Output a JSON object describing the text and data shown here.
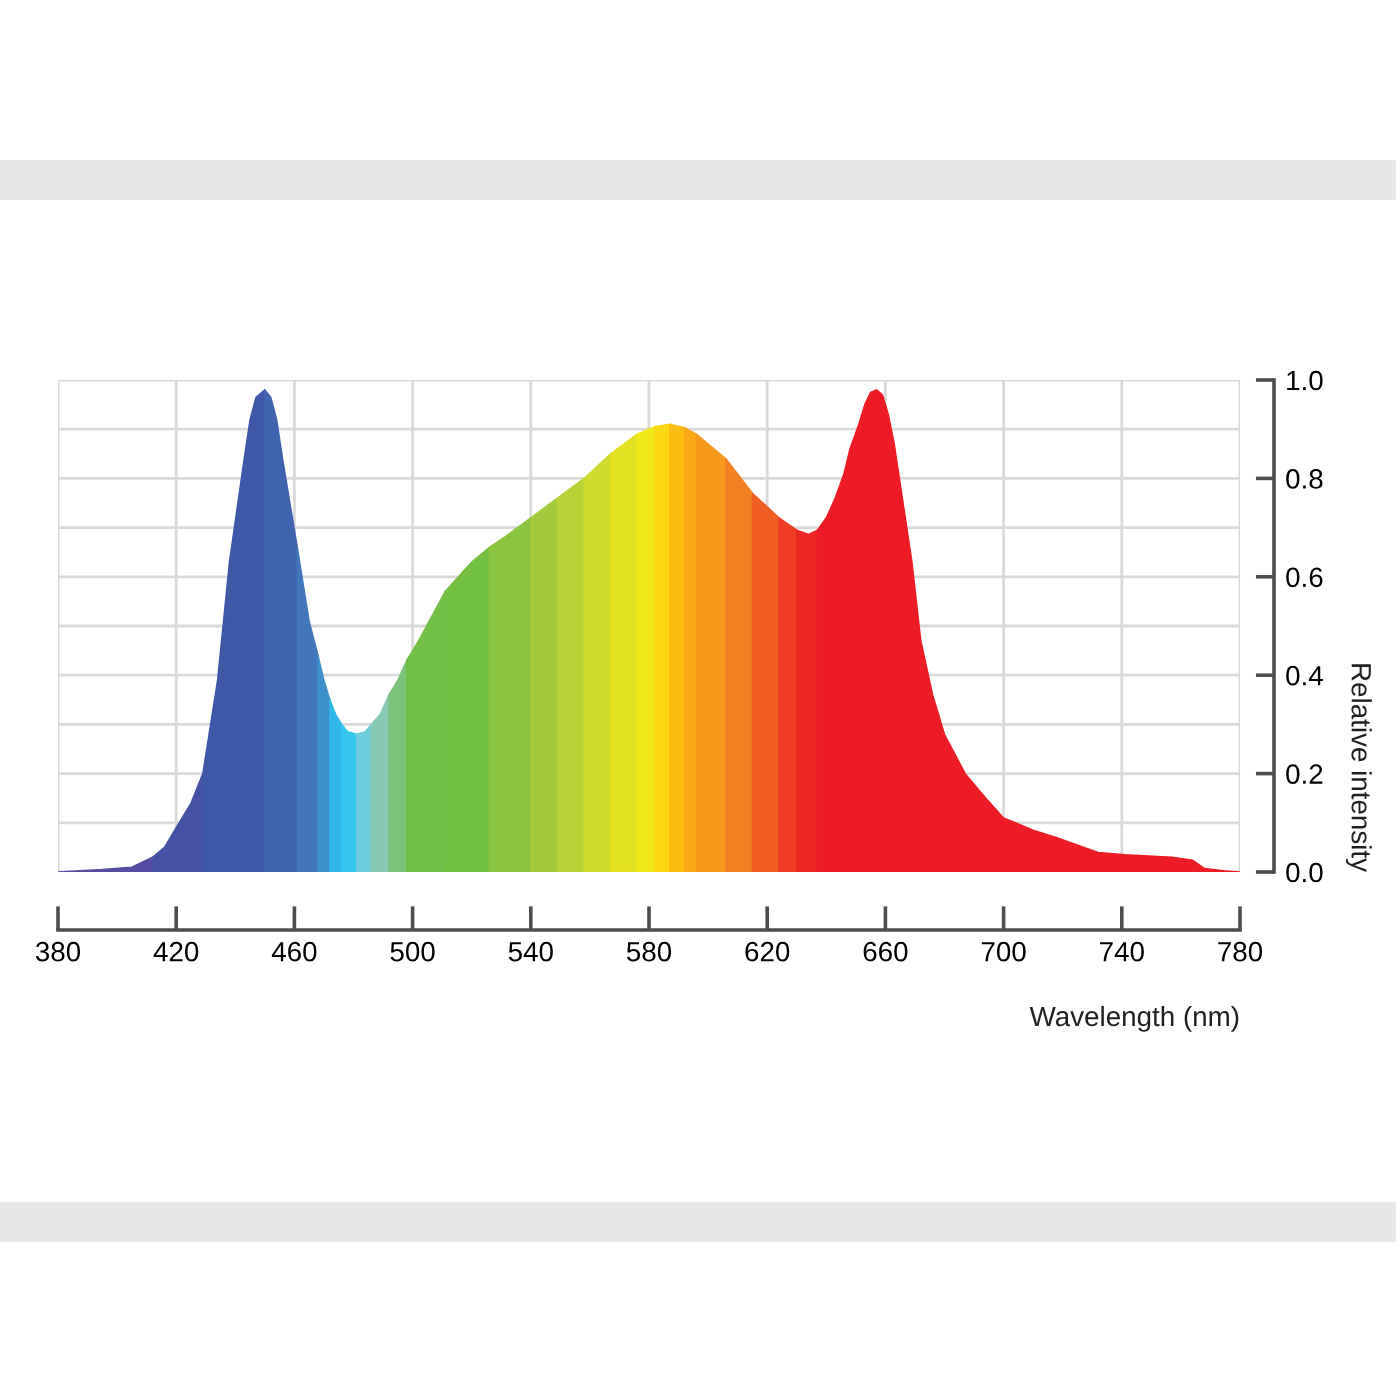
{
  "chart_data": {
    "type": "area",
    "xlabel": "Wavelength (nm)",
    "ylabel": "Relative intensity",
    "series": [
      {
        "color": "#544ca1",
        "x": [
          380,
          395,
          405,
          412
        ],
        "values": [
          0,
          0.005,
          0.01,
          0.03
        ]
      },
      {
        "color": "#4552a4",
        "x": [
          412,
          416,
          420,
          425,
          429
        ],
        "values": [
          0.03,
          0.05,
          0.09,
          0.14,
          0.2
        ]
      },
      {
        "color": "#3c58a7",
        "x": [
          429,
          434,
          438,
          443,
          445,
          447,
          450
        ],
        "values": [
          0.2,
          0.39,
          0.63,
          0.84,
          0.92,
          0.965,
          0.98
        ]
      },
      {
        "color": "#3f63ac",
        "x": [
          450,
          452,
          454,
          456,
          461
        ],
        "values": [
          0.98,
          0.965,
          0.92,
          0.84,
          0.66
        ]
      },
      {
        "color": "#4276bb",
        "x": [
          461,
          465,
          468
        ],
        "values": [
          0.66,
          0.51,
          0.44
        ]
      },
      {
        "color": "#3e90ca",
        "x": [
          468,
          470,
          472
        ],
        "values": [
          0.44,
          0.39,
          0.35
        ]
      },
      {
        "color": "#2fb7ea",
        "x": [
          472,
          474,
          476
        ],
        "values": [
          0.35,
          0.32,
          0.3
        ]
      },
      {
        "color": "#33c7f0",
        "x": [
          476,
          478,
          481
        ],
        "values": [
          0.3,
          0.285,
          0.28
        ]
      },
      {
        "color": "#6ccbdc",
        "x": [
          481,
          484,
          486
        ],
        "values": [
          0.28,
          0.285,
          0.3
        ]
      },
      {
        "color": "#85c9b4",
        "x": [
          486,
          489,
          492
        ],
        "values": [
          0.3,
          0.32,
          0.36
        ]
      },
      {
        "color": "#7cc27a",
        "x": [
          492,
          495,
          498
        ],
        "values": [
          0.36,
          0.39,
          0.43
        ]
      },
      {
        "color": "#72bf48",
        "x": [
          498,
          502,
          511
        ],
        "values": [
          0.43,
          0.47,
          0.57
        ]
      },
      {
        "color": "#74c043",
        "x": [
          511,
          520,
          526
        ],
        "values": [
          0.57,
          0.63,
          0.66
        ]
      },
      {
        "color": "#89c53f",
        "x": [
          526,
          531,
          540
        ],
        "values": [
          0.66,
          0.68,
          0.72
        ]
      },
      {
        "color": "#a2cb3b",
        "x": [
          540,
          549
        ],
        "values": [
          0.72,
          0.76
        ]
      },
      {
        "color": "#b8d236",
        "x": [
          549,
          558
        ],
        "values": [
          0.76,
          0.8
        ]
      },
      {
        "color": "#cfda2e",
        "x": [
          558,
          567
        ],
        "values": [
          0.8,
          0.85
        ]
      },
      {
        "color": "#e4e022",
        "x": [
          567,
          576
        ],
        "values": [
          0.85,
          0.89
        ]
      },
      {
        "color": "#f3e817",
        "x": [
          576,
          582
        ],
        "values": [
          0.89,
          0.905
        ]
      },
      {
        "color": "#fbd811",
        "x": [
          582,
          587
        ],
        "values": [
          0.905,
          0.91
        ]
      },
      {
        "color": "#fcbd12",
        "x": [
          587,
          592
        ],
        "values": [
          0.91,
          0.903
        ]
      },
      {
        "color": "#faa818",
        "x": [
          592,
          596
        ],
        "values": [
          0.903,
          0.89
        ]
      },
      {
        "color": "#f7981c",
        "x": [
          596,
          606
        ],
        "values": [
          0.89,
          0.84
        ]
      },
      {
        "color": "#f47f21",
        "x": [
          606,
          615
        ],
        "values": [
          0.84,
          0.77
        ]
      },
      {
        "color": "#f05e23",
        "x": [
          615,
          624
        ],
        "values": [
          0.77,
          0.72
        ]
      },
      {
        "color": "#ee3d24",
        "x": [
          624,
          630
        ],
        "values": [
          0.72,
          0.695
        ]
      },
      {
        "color": "#ed2624",
        "x": [
          630,
          634,
          637
        ],
        "values": [
          0.695,
          0.686,
          0.695
        ]
      },
      {
        "color": "#ed1c24",
        "x": [
          637,
          640,
          643,
          646,
          648,
          651,
          653,
          655,
          657,
          659,
          661,
          663,
          665,
          669,
          672,
          676,
          680,
          687,
          694,
          700,
          710,
          718,
          732,
          741,
          757,
          764,
          768,
          775,
          780
        ],
        "values": [
          0.695,
          0.72,
          0.76,
          0.81,
          0.86,
          0.91,
          0.95,
          0.975,
          0.98,
          0.97,
          0.93,
          0.87,
          0.79,
          0.63,
          0.47,
          0.36,
          0.28,
          0.2,
          0.15,
          0.11,
          0.085,
          0.07,
          0.04,
          0.035,
          0.03,
          0.024,
          0.007,
          0.002,
          0
        ]
      }
    ],
    "xlim": [
      380,
      780
    ],
    "xticks": [
      380,
      420,
      460,
      500,
      540,
      580,
      620,
      660,
      700,
      740,
      780
    ],
    "ylim": [
      0,
      1
    ],
    "yticks": [
      {
        "value": 0,
        "label": "0.0"
      },
      {
        "value": 0.1,
        "label": null
      },
      0.2,
      {
        "value": 0.3,
        "label": null
      },
      0.4,
      {
        "value": 0.5,
        "label": null
      },
      0.6,
      {
        "value": 0.7,
        "label": null
      },
      0.8,
      {
        "value": 0.9,
        "label": null
      },
      {
        "value": 1,
        "label": "1.0"
      }
    ],
    "grid": true
  }
}
